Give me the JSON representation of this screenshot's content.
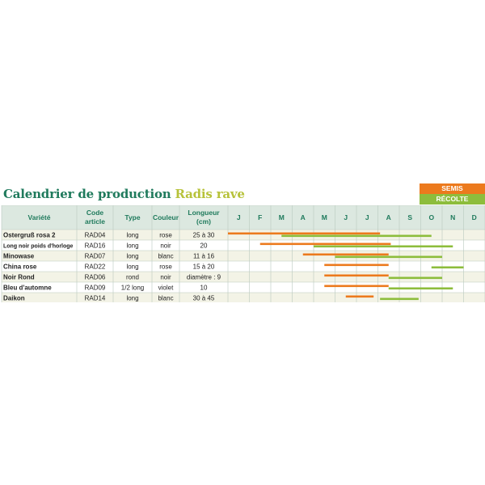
{
  "title": {
    "main": "Calendrier de production",
    "highlight": "Radis rave"
  },
  "legend": {
    "semis": "SEMIS",
    "recolte": "RÉCOLTE"
  },
  "colors": {
    "header_bg": "#dce8e0",
    "header_text": "#1f7a5c",
    "semis": "#ec7a1d",
    "recolte": "#8dbd3c",
    "row_alt": "#f3f3e6",
    "grid": "#b9c9be"
  },
  "columns": {
    "variete": "Variété",
    "code1": "Code",
    "code2": "article",
    "type": "Type",
    "couleur": "Couleur",
    "longueur1": "Longueur",
    "longueur2": "(cm)"
  },
  "months": [
    "J",
    "F",
    "M",
    "A",
    "M",
    "J",
    "J",
    "A",
    "S",
    "O",
    "N",
    "D"
  ],
  "rows": [
    {
      "variete": "Ostergruß rosa 2",
      "code": "RAD04",
      "type": "long",
      "couleur": "rose",
      "longueur": "25 à 30",
      "semis": [
        0.0,
        7.1
      ],
      "recolte": [
        2.5,
        9.5
      ]
    },
    {
      "variete": "Long noir poids d'horloge",
      "code": "RAD16",
      "type": "long",
      "couleur": "noir",
      "longueur": "20",
      "semis": [
        1.5,
        7.6
      ],
      "recolte": [
        4.0,
        10.5
      ]
    },
    {
      "variete": "Minowase",
      "code": "RAD07",
      "type": "long",
      "couleur": "blanc",
      "longueur": "11 à 16",
      "semis": [
        3.5,
        7.5
      ],
      "recolte": [
        5.0,
        10.0
      ]
    },
    {
      "variete": "China rose",
      "code": "RAD22",
      "type": "long",
      "couleur": "rose",
      "longueur": "15 à 20",
      "semis": [
        4.5,
        7.5
      ],
      "recolte": [
        9.5,
        11.0
      ]
    },
    {
      "variete": "Noir Rond",
      "code": "RAD06",
      "type": "rond",
      "couleur": "noir",
      "longueur": "diamètre : 9",
      "semis": [
        4.5,
        7.5
      ],
      "recolte": [
        7.5,
        10.0
      ]
    },
    {
      "variete": "Bleu d'automne",
      "code": "RAD09",
      "type": "1/2 long",
      "couleur": "violet",
      "longueur": "10",
      "semis": [
        4.5,
        7.5
      ],
      "recolte": [
        7.5,
        10.5
      ]
    },
    {
      "variete": "Daikon",
      "code": "RAD14",
      "type": "long",
      "couleur": "blanc",
      "longueur": "30 à 45",
      "semis": [
        5.5,
        6.8
      ],
      "recolte": [
        7.1,
        8.9
      ]
    }
  ]
}
